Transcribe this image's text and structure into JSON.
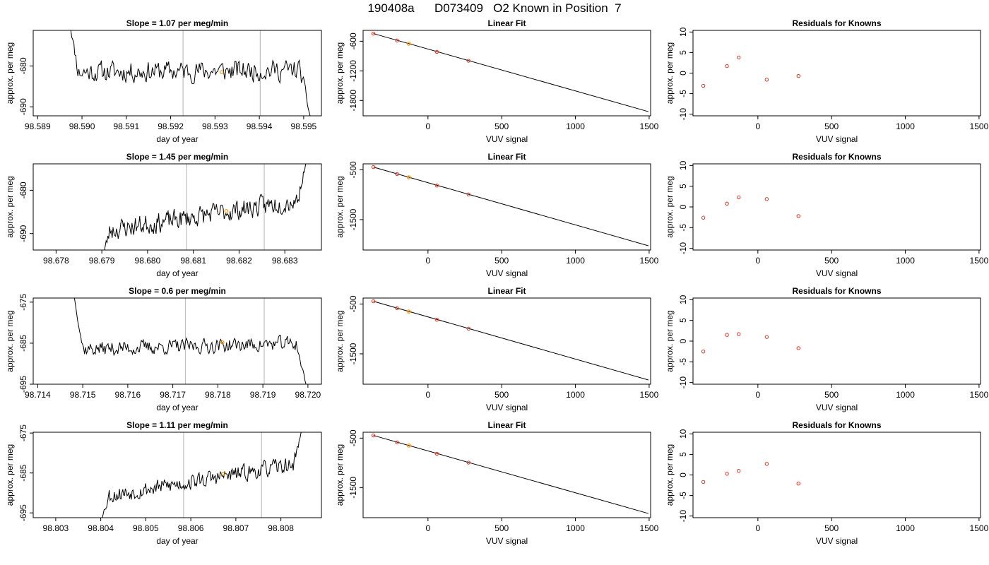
{
  "title": "190408a      D073409   O2 Known in Position  7",
  "colors": {
    "trace": "#000000",
    "vline": "#bebebe",
    "known": "#e6301f",
    "highlight": "#f59d1c",
    "frame": "#000000"
  },
  "labels": {
    "day_of_year": "day of year",
    "approx_per_meg": "approx. per meg",
    "vuv_signal": "VUV signal",
    "linear_fit": "Linear Fit",
    "residuals": "Residuals for Knowns"
  },
  "chart_data": [
    {
      "type": "line",
      "panel": "slope-1",
      "title": "Slope =  1.07  per meg/min",
      "xlabel": "day of year",
      "ylabel": "approx. per meg",
      "xlim": [
        98.5889,
        98.5954
      ],
      "ylim": [
        -692.2,
        -671.3
      ],
      "xticks": [
        98.589,
        98.59,
        98.591,
        98.592,
        98.593,
        98.594,
        98.595
      ],
      "xtick_labels": [
        "98.589",
        "98.590",
        "98.591",
        "98.592",
        "98.593",
        "98.594",
        "98.595"
      ],
      "yticks": [
        -690,
        -680
      ],
      "ytick_labels": [
        "-690",
        "-680"
      ],
      "vlines": [
        98.59228,
        98.59402
      ],
      "highlight": {
        "x": 98.59315,
        "y": -681.5
      },
      "series": {
        "x_start": 98.5897,
        "x_end": 98.5952,
        "seed": 11,
        "level_start": -681.5,
        "level_end": -681.0,
        "noise": 2.3,
        "start_from": -668,
        "end_to": -695
      }
    },
    {
      "type": "line",
      "panel": "slope-2",
      "title": "Slope =  1.45  per meg/min",
      "xlabel": "day of year",
      "ylabel": "approx. per meg",
      "xlim": [
        98.6775,
        98.6838
      ],
      "ylim": [
        -693.8,
        -673.9
      ],
      "xticks": [
        98.678,
        98.679,
        98.68,
        98.681,
        98.682,
        98.683
      ],
      "xtick_labels": [
        "98.678",
        "98.679",
        "98.680",
        "98.681",
        "98.682",
        "98.683"
      ],
      "yticks": [
        -690,
        -680
      ],
      "ytick_labels": [
        "-690",
        "-680"
      ],
      "vlines": [
        98.68085,
        98.68255
      ],
      "highlight": {
        "x": 98.68172,
        "y": -684.8
      },
      "series": {
        "x_start": 98.679,
        "x_end": 98.6835,
        "seed": 23,
        "level_start": -689.5,
        "level_end": -682.0,
        "noise": 2.1,
        "start_from": -696,
        "end_to": -672
      }
    },
    {
      "type": "line",
      "panel": "slope-3",
      "title": "Slope =  0.6  per meg/min",
      "xlabel": "day of year",
      "ylabel": "approx. per meg",
      "xlim": [
        98.7139,
        98.7203
      ],
      "ylim": [
        -695.0,
        -674.0
      ],
      "xticks": [
        98.714,
        98.715,
        98.716,
        98.717,
        98.718,
        98.719,
        98.72
      ],
      "xtick_labels": [
        "98.714",
        "98.715",
        "98.716",
        "98.717",
        "98.718",
        "98.719",
        "98.720"
      ],
      "yticks": [
        -695,
        -685,
        -675
      ],
      "ytick_labels": [
        "-695",
        "-685",
        "-675"
      ],
      "vlines": [
        98.71728,
        98.71903
      ],
      "highlight": {
        "x": 98.7181,
        "y": -684.8
      },
      "series": {
        "x_start": 98.7148,
        "x_end": 98.72,
        "seed": 37,
        "level_start": -686.5,
        "level_end": -685.0,
        "noise": 1.6,
        "start_from": -673,
        "end_to": -697
      }
    },
    {
      "type": "line",
      "panel": "slope-4",
      "title": "Slope =  1.11  per meg/min",
      "xlabel": "day of year",
      "ylabel": "approx. per meg",
      "xlim": [
        98.8025,
        98.8089
      ],
      "ylim": [
        -696.2,
        -674.8
      ],
      "xticks": [
        98.803,
        98.804,
        98.805,
        98.806,
        98.807,
        98.808
      ],
      "xtick_labels": [
        "98.803",
        "98.804",
        "98.805",
        "98.806",
        "98.807",
        "98.808"
      ],
      "yticks": [
        -695,
        -685,
        -675
      ],
      "ytick_labels": [
        "-695",
        "-685",
        "-675"
      ],
      "vlines": [
        98.80584,
        98.80757
      ],
      "highlight": {
        "x": 98.80672,
        "y": -685.2
      },
      "series": {
        "x_start": 98.804,
        "x_end": 98.8085,
        "seed": 53,
        "level_start": -691.0,
        "level_end": -682.5,
        "noise": 1.8,
        "start_from": -697,
        "end_to": -673
      }
    },
    {
      "type": "scatter",
      "panel": "fit-1",
      "title": "Linear Fit",
      "xlabel": "VUV signal",
      "ylabel": "approx. per meg",
      "xlim": [
        -440,
        1510
      ],
      "ylim": [
        -2110,
        -380
      ],
      "xticks": [
        0,
        500,
        1000,
        1500
      ],
      "xtick_labels": [
        "0",
        "500",
        "1000",
        "1500"
      ],
      "yticks": [
        -1800,
        -1200,
        -600
      ],
      "ytick_labels": [
        "-1800",
        "-1200",
        "-600"
      ],
      "line": {
        "x": [
          -370,
          1495
        ],
        "y": [
          -445,
          -2025
        ]
      },
      "points": {
        "x": [
          -370,
          -210,
          -130,
          60,
          275
        ],
        "y": [
          -445,
          -585,
          -651,
          -815,
          -995
        ]
      },
      "highlight": {
        "x": -130,
        "y": -651
      }
    },
    {
      "type": "scatter",
      "panel": "fit-2",
      "title": "Linear Fit",
      "xlabel": "VUV signal",
      "ylabel": "approx. per meg",
      "xlim": [
        -440,
        1510
      ],
      "ylim": [
        -2110,
        -380
      ],
      "xticks": [
        0,
        500,
        1000,
        1500
      ],
      "xtick_labels": [
        "0",
        "500",
        "1000",
        "1500"
      ],
      "yticks": [
        -1500,
        -500
      ],
      "ytick_labels": [
        "-1500",
        "-500"
      ],
      "line": {
        "x": [
          -370,
          1495
        ],
        "y": [
          -445,
          -2025
        ]
      },
      "points": {
        "x": [
          -370,
          -210,
          -130,
          60,
          275
        ],
        "y": [
          -445,
          -585,
          -651,
          -815,
          -995
        ]
      },
      "highlight": {
        "x": -130,
        "y": -651
      }
    },
    {
      "type": "scatter",
      "panel": "fit-3",
      "title": "Linear Fit",
      "xlabel": "VUV signal",
      "ylabel": "approx. per meg",
      "xlim": [
        -440,
        1510
      ],
      "ylim": [
        -2110,
        -380
      ],
      "xticks": [
        0,
        500,
        1000,
        1500
      ],
      "xtick_labels": [
        "0",
        "500",
        "1000",
        "1500"
      ],
      "yticks": [
        -1500,
        -500
      ],
      "ytick_labels": [
        "-1500",
        "-500"
      ],
      "line": {
        "x": [
          -370,
          1495
        ],
        "y": [
          -445,
          -2025
        ]
      },
      "points": {
        "x": [
          -370,
          -210,
          -130,
          60,
          275
        ],
        "y": [
          -445,
          -585,
          -651,
          -815,
          -995
        ]
      },
      "highlight": {
        "x": -130,
        "y": -651
      }
    },
    {
      "type": "scatter",
      "panel": "fit-4",
      "title": "Linear Fit",
      "xlabel": "VUV signal",
      "ylabel": "approx. per meg",
      "xlim": [
        -440,
        1510
      ],
      "ylim": [
        -2110,
        -380
      ],
      "xticks": [
        0,
        500,
        1000,
        1500
      ],
      "xtick_labels": [
        "0",
        "500",
        "1000",
        "1500"
      ],
      "yticks": [
        -1500,
        -500
      ],
      "ytick_labels": [
        "-1500",
        "-500"
      ],
      "line": {
        "x": [
          -370,
          1495
        ],
        "y": [
          -445,
          -2025
        ]
      },
      "points": {
        "x": [
          -370,
          -210,
          -130,
          60,
          275
        ],
        "y": [
          -445,
          -585,
          -651,
          -815,
          -995
        ]
      },
      "highlight": {
        "x": -130,
        "y": -651
      }
    },
    {
      "type": "scatter",
      "panel": "resid-1",
      "title": "Residuals for Knowns",
      "xlabel": "VUV signal",
      "ylabel": "approx. per meg",
      "xlim": [
        -440,
        1510
      ],
      "ylim": [
        -10.4,
        10.4
      ],
      "xticks": [
        0,
        500,
        1000,
        1500
      ],
      "xtick_labels": [
        "0",
        "500",
        "1000",
        "1500"
      ],
      "yticks": [
        -10,
        -5,
        0,
        5,
        10
      ],
      "ytick_labels": [
        "-10",
        "-5",
        "0",
        "5",
        "10"
      ],
      "points": {
        "x": [
          -370,
          -210,
          -130,
          60,
          275
        ],
        "y": [
          -3.1,
          1.7,
          3.8,
          -1.6,
          -0.7
        ]
      }
    },
    {
      "type": "scatter",
      "panel": "resid-2",
      "title": "Residuals for Knowns",
      "xlabel": "VUV signal",
      "ylabel": "approx. per meg",
      "xlim": [
        -440,
        1510
      ],
      "ylim": [
        -10.4,
        10.4
      ],
      "xticks": [
        0,
        500,
        1000,
        1500
      ],
      "xtick_labels": [
        "0",
        "500",
        "1000",
        "1500"
      ],
      "yticks": [
        -10,
        -5,
        0,
        5,
        10
      ],
      "ytick_labels": [
        "-10",
        "-5",
        "0",
        "5",
        "10"
      ],
      "points": {
        "x": [
          -370,
          -210,
          -130,
          60,
          275
        ],
        "y": [
          -2.6,
          0.8,
          2.3,
          1.9,
          -2.2
        ]
      }
    },
    {
      "type": "scatter",
      "panel": "resid-3",
      "title": "Residuals for Knowns",
      "xlabel": "VUV signal",
      "ylabel": "approx. per meg",
      "xlim": [
        -440,
        1510
      ],
      "ylim": [
        -10.4,
        10.4
      ],
      "xticks": [
        0,
        500,
        1000,
        1500
      ],
      "xtick_labels": [
        "0",
        "500",
        "1000",
        "1500"
      ],
      "yticks": [
        -10,
        -5,
        0,
        5,
        10
      ],
      "ytick_labels": [
        "-10",
        "-5",
        "0",
        "5",
        "10"
      ],
      "points": {
        "x": [
          -370,
          -210,
          -130,
          60,
          275
        ],
        "y": [
          -2.5,
          1.5,
          1.7,
          1.0,
          -1.7
        ]
      }
    },
    {
      "type": "scatter",
      "panel": "resid-4",
      "title": "Residuals for Knowns",
      "xlabel": "VUV signal",
      "ylabel": "approx. per meg",
      "xlim": [
        -440,
        1510
      ],
      "ylim": [
        -10.4,
        10.4
      ],
      "xticks": [
        0,
        500,
        1000,
        1500
      ],
      "xtick_labels": [
        "0",
        "500",
        "1000",
        "1500"
      ],
      "yticks": [
        -10,
        -5,
        0,
        5,
        10
      ],
      "ytick_labels": [
        "-10",
        "-5",
        "0",
        "5",
        "10"
      ],
      "points": {
        "x": [
          -370,
          -210,
          -130,
          60,
          275
        ],
        "y": [
          -1.7,
          0.3,
          1.0,
          2.7,
          -2.1
        ]
      }
    }
  ]
}
